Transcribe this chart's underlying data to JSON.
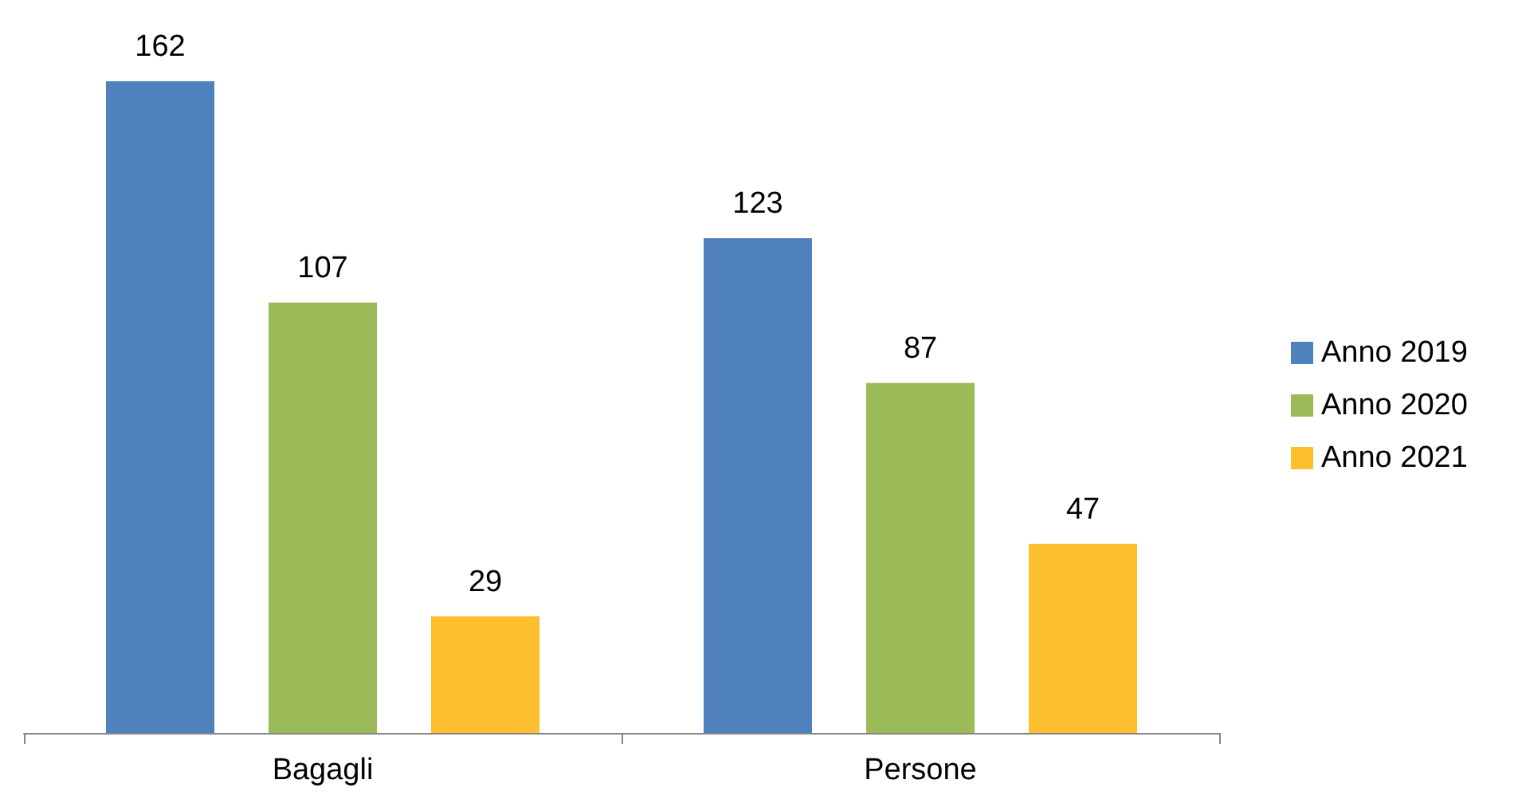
{
  "chart_data": {
    "type": "bar",
    "categories": [
      "Bagagli",
      "Persone"
    ],
    "series": [
      {
        "name": "Anno 2019",
        "color": "#4f81bd",
        "values": [
          162,
          123
        ]
      },
      {
        "name": "Anno 2020",
        "color": "#9bbb59",
        "values": [
          107,
          87
        ]
      },
      {
        "name": "Anno 2021",
        "color": "#fdbf2d",
        "values": [
          29,
          47
        ]
      }
    ],
    "data_labels": true,
    "legend": "right",
    "grid": false
  }
}
